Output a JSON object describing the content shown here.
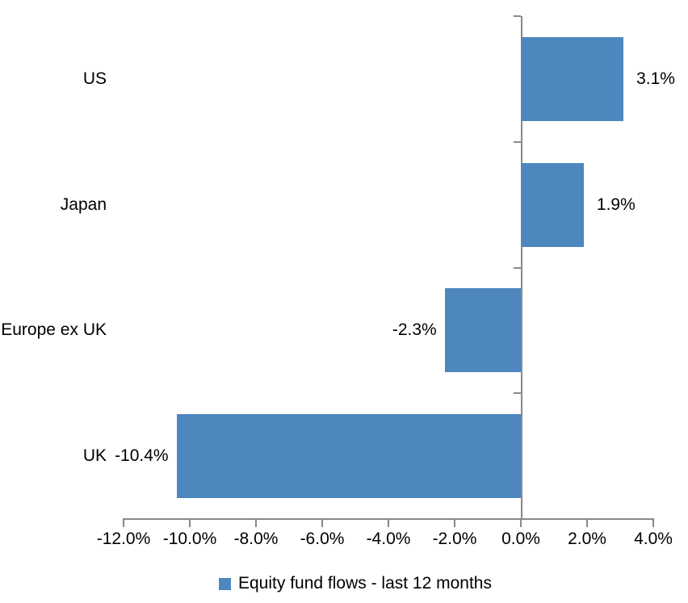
{
  "chart_data": {
    "type": "bar",
    "orientation": "horizontal",
    "title": "",
    "categories": [
      "US",
      "Japan",
      "Europe ex UK",
      "UK"
    ],
    "values": [
      3.1,
      1.9,
      -2.3,
      -10.4
    ],
    "data_labels": [
      "3.1%",
      "1.9%",
      "-2.3%",
      "-10.4%"
    ],
    "series_name": "Equity fund flows - last 12 months",
    "xlim": [
      -12,
      4
    ],
    "x_ticks": [
      -12,
      -10,
      -8,
      -6,
      -4,
      -2,
      0,
      2,
      4
    ],
    "x_tick_labels": [
      "-12.0%",
      "-10.0%",
      "-8.0%",
      "-6.0%",
      "-4.0%",
      "-2.0%",
      "0.0%",
      "2.0%",
      "4.0%"
    ],
    "legend_position": "bottom",
    "grid": "off",
    "bar_color": "#4e87be",
    "axis_color": "#898989",
    "text_color": "#000000"
  }
}
